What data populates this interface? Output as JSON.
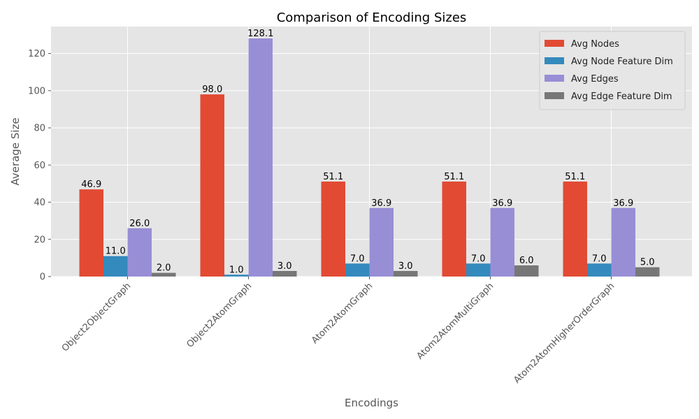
{
  "chart_data": {
    "type": "bar",
    "title": "Comparison of Encoding Sizes",
    "xlabel": "Encodings",
    "ylabel": "Average Size",
    "categories": [
      "Object2ObjectGraph",
      "Object2AtomGraph",
      "Atom2AtomGraph",
      "Atom2AtomMultiGraph",
      "Atom2AtomHigherOrderGraph"
    ],
    "series": [
      {
        "name": "Avg Nodes",
        "color": "#E24A33",
        "values": [
          46.9,
          98.0,
          51.1,
          51.1,
          51.1
        ],
        "labels": [
          "46.9",
          "98.0",
          "51.1",
          "51.1",
          "51.1"
        ]
      },
      {
        "name": "Avg Node Feature Dim",
        "color": "#348ABD",
        "values": [
          11.0,
          1.0,
          7.0,
          7.0,
          7.0
        ],
        "labels": [
          "11.0",
          "1.0",
          "7.0",
          "7.0",
          "7.0"
        ]
      },
      {
        "name": "Avg Edges",
        "color": "#988ED5",
        "values": [
          26.0,
          128.1,
          36.9,
          36.9,
          36.9
        ],
        "labels": [
          "26.0",
          "128.1",
          "36.9",
          "36.9",
          "36.9"
        ]
      },
      {
        "name": "Avg Edge Feature Dim",
        "color": "#777777",
        "values": [
          2.0,
          3.0,
          3.0,
          6.0,
          5.0
        ],
        "labels": [
          "2.0",
          "3.0",
          "3.0",
          "6.0",
          "5.0"
        ]
      }
    ],
    "ylim": [
      0,
      134.5
    ],
    "yticks": [
      0,
      20,
      40,
      60,
      80,
      100,
      120
    ],
    "ytick_labels": [
      "0",
      "20",
      "40",
      "60",
      "80",
      "100",
      "120"
    ],
    "grid": true,
    "legend_position": "top-right",
    "xtick_rotation": 45,
    "style": {
      "background": "#E5E5E5",
      "grid_color": "#FFFFFF"
    }
  }
}
